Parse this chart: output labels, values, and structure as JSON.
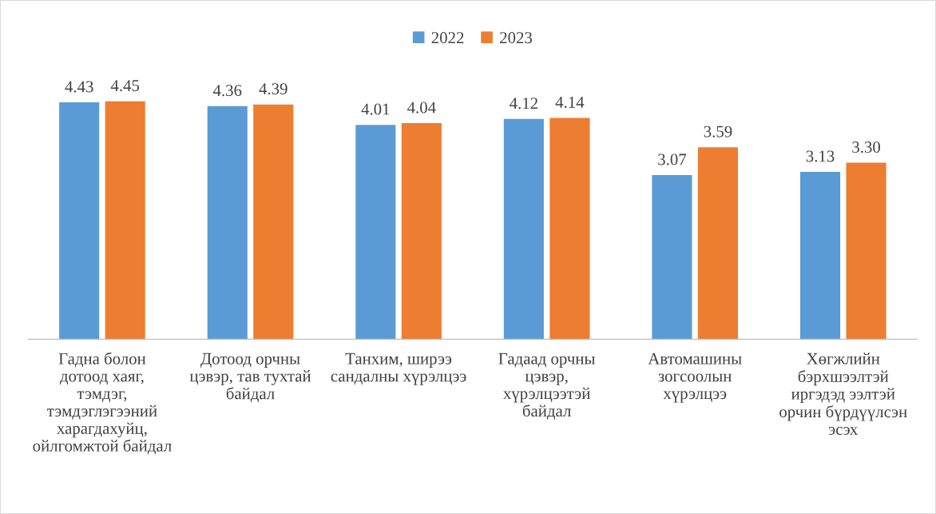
{
  "chart_data": {
    "type": "bar",
    "categories": [
      "Гадна болон дотоод хаяг, тэмдэг, тэмдэглэгээний харагдахуйц, ойлгомжтой байдал",
      "Дотоод орчны цэвэр, тав тухтай байдал",
      "Танхим, ширээ сандалны хүрэлцээ",
      "Гадаад орчны цэвэр, хүрэлцээтэй байдал",
      "Автомашины зогсоолын хүрэлцээ",
      "Хөгжлийн бэрхшээлтэй иргэдэд ээлтэй орчин бүрдүүлсэн эсэх"
    ],
    "series": [
      {
        "name": "2022",
        "color": "#5b9bd5",
        "values": [
          4.43,
          4.36,
          4.01,
          4.12,
          3.07,
          3.13
        ],
        "value_labels": [
          "4.43",
          "4.36",
          "4.01",
          "4.12",
          "3.07",
          "3.13"
        ]
      },
      {
        "name": "2023",
        "color": "#ed7d31",
        "values": [
          4.45,
          4.39,
          4.04,
          4.14,
          3.59,
          3.3
        ],
        "value_labels": [
          "4.45",
          "4.39",
          "4.04",
          "4.14",
          "3.59",
          "3.30"
        ]
      }
    ],
    "legend": "top",
    "grid": false,
    "tick_labels": "x"
  }
}
